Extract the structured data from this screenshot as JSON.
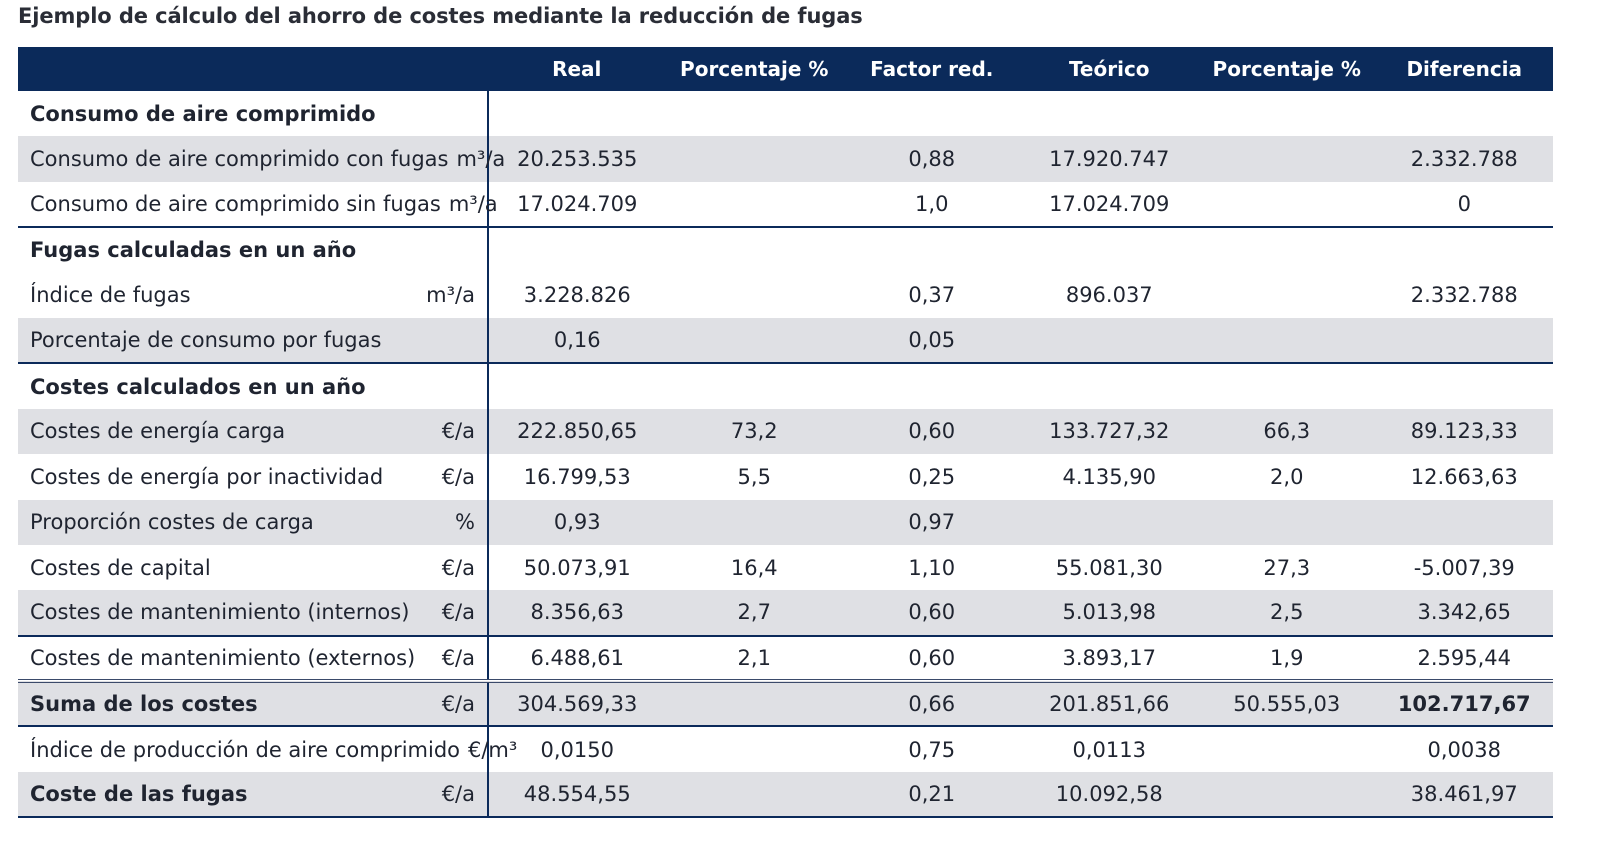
{
  "title": "Ejemplo de cálculo del ahorro de costes mediante la reducción de fugas",
  "headers": [
    "",
    "Real",
    "Porcentaje %",
    "Factor red.",
    "Teórico",
    "Porcentaje %",
    "Diferencia"
  ],
  "rows": [
    {
      "label": "Consumo de aire comprimido",
      "unit": "",
      "values": [
        "",
        "",
        "",
        "",
        "",
        ""
      ]
    },
    {
      "label": "Consumo de aire comprimido con fugas",
      "unit": "m³/a",
      "values": [
        "20.253.535",
        "",
        "0,88",
        "17.920.747",
        "",
        "2.332.788"
      ]
    },
    {
      "label": "Consumo de aire comprimido sin fugas",
      "unit": "m³/a",
      "values": [
        "17.024.709",
        "",
        "1,0",
        "17.024.709",
        "",
        "0"
      ]
    },
    {
      "label": "Fugas calculadas en un año",
      "unit": "",
      "values": [
        "",
        "",
        "",
        "",
        "",
        ""
      ]
    },
    {
      "label": "Índice de fugas",
      "unit": "m³/a",
      "values": [
        "3.228.826",
        "",
        "0,37",
        "896.037",
        "",
        "2.332.788"
      ]
    },
    {
      "label": "Porcentaje de consumo por fugas",
      "unit": "",
      "values": [
        "0,16",
        "",
        "0,05",
        "",
        "",
        ""
      ]
    },
    {
      "label": "Costes calculados en un año",
      "unit": "",
      "values": [
        "",
        "",
        "",
        "",
        "",
        ""
      ]
    },
    {
      "label": "Costes de energía carga",
      "unit": "€/a",
      "values": [
        "222.850,65",
        "73,2",
        "0,60",
        "133.727,32",
        "66,3",
        "89.123,33"
      ]
    },
    {
      "label": "Costes de energía por inactividad",
      "unit": "€/a",
      "values": [
        "16.799,53",
        "5,5",
        "0,25",
        "4.135,90",
        "2,0",
        "12.663,63"
      ]
    },
    {
      "label": "Proporción costes de carga",
      "unit": "%",
      "values": [
        "0,93",
        "",
        "0,97",
        "",
        "",
        ""
      ]
    },
    {
      "label": "Costes de capital",
      "unit": "€/a",
      "values": [
        "50.073,91",
        "16,4",
        "1,10",
        "55.081,30",
        "27,3",
        "-5.007,39"
      ]
    },
    {
      "label": "Costes de mantenimiento (internos)",
      "unit": "€/a",
      "values": [
        "8.356,63",
        "2,7",
        "0,60",
        "5.013,98",
        "2,5",
        "3.342,65"
      ]
    },
    {
      "label": "Costes de mantenimiento (externos)",
      "unit": "€/a",
      "values": [
        "6.488,61",
        "2,1",
        "0,60",
        "3.893,17",
        "1,9",
        "2.595,44"
      ]
    },
    {
      "label": "Suma de los costes",
      "unit": "€/a",
      "values": [
        "304.569,33",
        "",
        "0,66",
        "201.851,66",
        "50.555,03",
        "102.717,67"
      ]
    },
    {
      "label": "Índice de producción de aire comprimido",
      "unit": "€/m³",
      "values": [
        "0,0150",
        "",
        "0,75",
        "0,0113",
        "",
        "0,0038"
      ]
    },
    {
      "label": "Coste de las fugas",
      "unit": "€/a",
      "values": [
        "48.554,55",
        "",
        "0,21",
        "10.092,58",
        "",
        "38.461,97"
      ]
    }
  ]
}
